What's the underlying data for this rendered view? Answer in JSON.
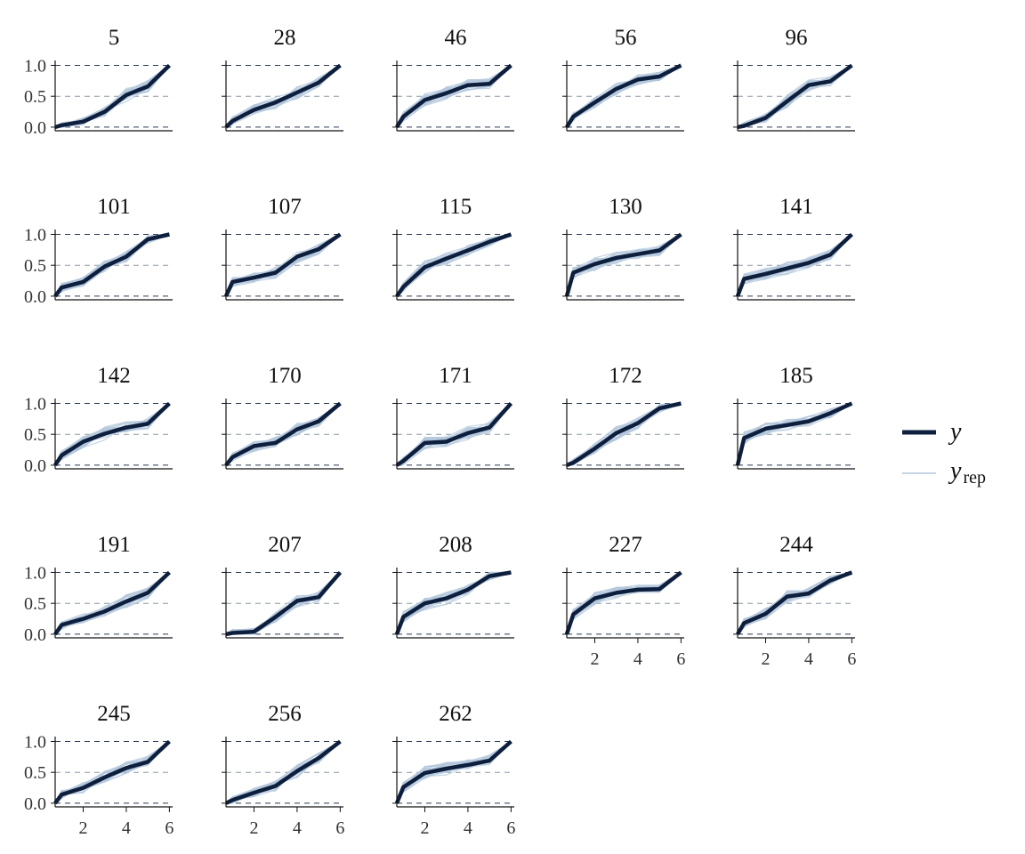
{
  "chart_data": {
    "type": "line",
    "layout": "facet-grid",
    "xlabel": "",
    "ylabel": "",
    "xlim": [
      0.7,
      6.15
    ],
    "ylim": [
      -0.03,
      1.05
    ],
    "xticks": [
      2,
      4,
      6
    ],
    "yticks": [
      0.0,
      0.5,
      1.0
    ],
    "ytick_labels": [
      "0.0",
      "0.5",
      "1.0"
    ],
    "xtick_labels": [
      "2",
      "4",
      "6"
    ],
    "reference_lines": [
      0,
      0.5,
      1
    ],
    "colors": {
      "y": "#0d1f3d",
      "yrep": "#b3c7dc"
    },
    "legend": {
      "position": "right",
      "y_label": "y",
      "yrep_label": "y",
      "yrep_sub": "rep"
    },
    "x": [
      0.7,
      1,
      2,
      3,
      4,
      5,
      6
    ],
    "panels": [
      {
        "id": "5",
        "y": [
          0.0,
          0.03,
          0.09,
          0.25,
          0.52,
          0.66,
          1.0
        ]
      },
      {
        "id": "28",
        "y": [
          0.0,
          0.1,
          0.28,
          0.4,
          0.56,
          0.72,
          1.0
        ]
      },
      {
        "id": "46",
        "y": [
          0.0,
          0.17,
          0.44,
          0.55,
          0.68,
          0.7,
          1.0
        ]
      },
      {
        "id": "56",
        "y": [
          0.0,
          0.17,
          0.4,
          0.62,
          0.77,
          0.82,
          1.0
        ]
      },
      {
        "id": "96",
        "y": [
          0.0,
          0.02,
          0.15,
          0.42,
          0.68,
          0.74,
          1.0
        ]
      },
      {
        "id": "101",
        "y": [
          0.0,
          0.14,
          0.23,
          0.48,
          0.64,
          0.92,
          1.0
        ]
      },
      {
        "id": "107",
        "y": [
          0.0,
          0.23,
          0.3,
          0.38,
          0.64,
          0.76,
          1.0
        ]
      },
      {
        "id": "115",
        "y": [
          0.0,
          0.15,
          0.47,
          0.61,
          0.74,
          0.88,
          1.0
        ]
      },
      {
        "id": "130",
        "y": [
          0.0,
          0.38,
          0.52,
          0.62,
          0.68,
          0.74,
          1.0
        ]
      },
      {
        "id": "141",
        "y": [
          0.0,
          0.28,
          0.36,
          0.45,
          0.54,
          0.67,
          1.0
        ]
      },
      {
        "id": "142",
        "y": [
          0.0,
          0.16,
          0.38,
          0.51,
          0.61,
          0.67,
          1.0
        ]
      },
      {
        "id": "170",
        "y": [
          0.0,
          0.13,
          0.31,
          0.36,
          0.58,
          0.71,
          1.0
        ]
      },
      {
        "id": "171",
        "y": [
          0.0,
          0.07,
          0.36,
          0.38,
          0.52,
          0.61,
          1.0
        ]
      },
      {
        "id": "172",
        "y": [
          0.0,
          0.04,
          0.27,
          0.52,
          0.68,
          0.92,
          1.0
        ]
      },
      {
        "id": "185",
        "y": [
          0.0,
          0.44,
          0.59,
          0.65,
          0.71,
          0.84,
          1.0
        ]
      },
      {
        "id": "191",
        "y": [
          0.0,
          0.15,
          0.25,
          0.37,
          0.53,
          0.67,
          1.0
        ]
      },
      {
        "id": "207",
        "y": [
          0.0,
          0.02,
          0.04,
          0.28,
          0.54,
          0.6,
          1.0
        ]
      },
      {
        "id": "208",
        "y": [
          0.0,
          0.28,
          0.5,
          0.58,
          0.72,
          0.94,
          1.0
        ]
      },
      {
        "id": "227",
        "y": [
          0.0,
          0.32,
          0.58,
          0.67,
          0.72,
          0.73,
          1.0
        ]
      },
      {
        "id": "244",
        "y": [
          0.0,
          0.18,
          0.33,
          0.61,
          0.66,
          0.87,
          1.0
        ]
      },
      {
        "id": "245",
        "y": [
          0.0,
          0.14,
          0.25,
          0.42,
          0.57,
          0.67,
          1.0
        ]
      },
      {
        "id": "256",
        "y": [
          0.0,
          0.05,
          0.17,
          0.28,
          0.52,
          0.73,
          1.0
        ]
      },
      {
        "id": "262",
        "y": [
          0.0,
          0.26,
          0.49,
          0.56,
          0.62,
          0.69,
          1.0
        ]
      }
    ]
  }
}
